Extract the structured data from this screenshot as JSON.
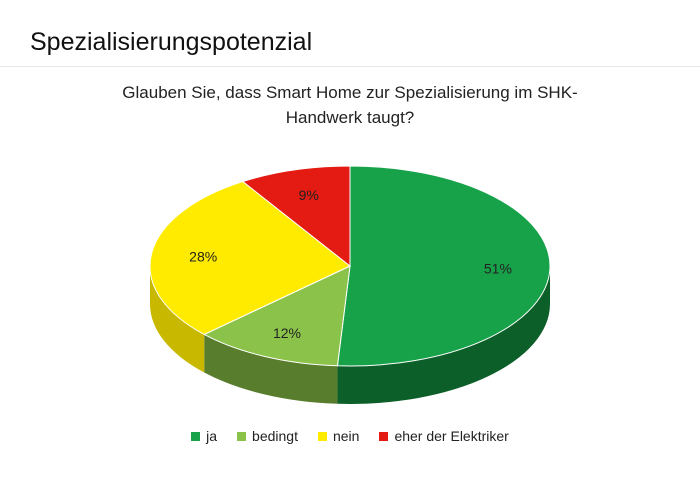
{
  "slide_title": "Spezialisierungspotenzial",
  "chart_data": {
    "type": "pie",
    "title_lines": [
      "Glauben Sie, dass Smart Home zur Spezialisierung im SHK-",
      "Handwerk taugt?"
    ],
    "categories": [
      "ja",
      "bedingt",
      "nein",
      "eher der Elektriker"
    ],
    "values": [
      51,
      12,
      28,
      9
    ],
    "data_labels": [
      "51%",
      "12%",
      "28%",
      "9%"
    ],
    "colors": [
      "#17a24a",
      "#8bc34a",
      "#ffeb00",
      "#e31b12"
    ],
    "side_colors": [
      "#0d5f2a",
      "#587d2c",
      "#c9b800",
      "#8f110b"
    ],
    "legend_position": "bottom"
  }
}
